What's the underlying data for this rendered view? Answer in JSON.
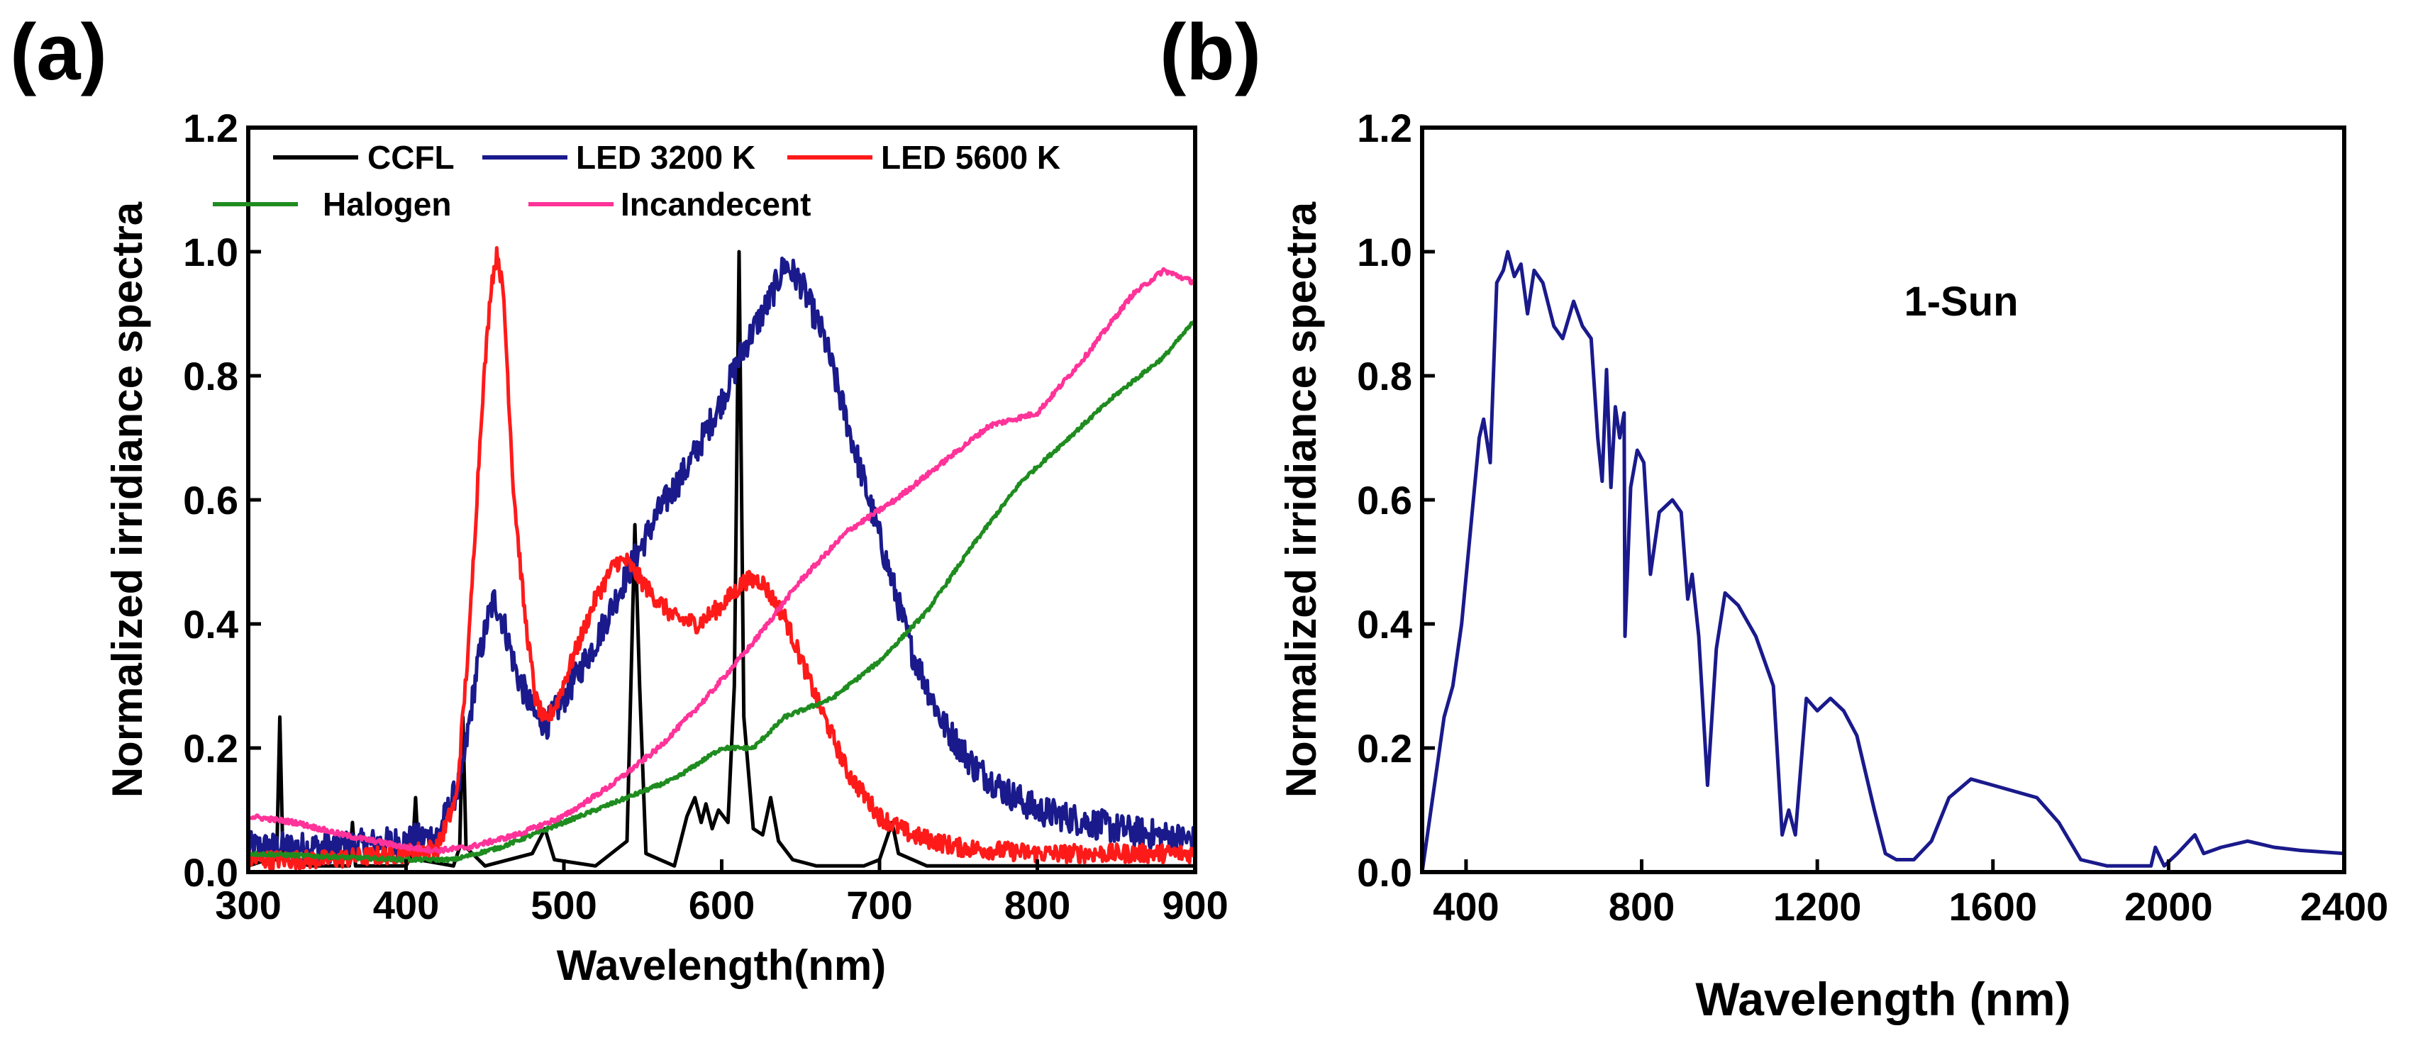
{
  "chart_data": [
    {
      "panel": "(a)",
      "type": "line",
      "xlabel": "Wavelength(nm)",
      "ylabel": "Normalized irridiance spectra",
      "xlim": [
        300,
        900
      ],
      "ylim": [
        0,
        1.2
      ],
      "xticks": [
        300,
        400,
        500,
        600,
        700,
        800,
        900
      ],
      "yticks": [
        0.0,
        0.2,
        0.4,
        0.6,
        0.8,
        1.0,
        1.2
      ],
      "xtick_labels": [
        "300",
        "400",
        "500",
        "600",
        "700",
        "800",
        "900"
      ],
      "ytick_labels": [
        "0.0",
        "0.2",
        "0.4",
        "0.6",
        "0.8",
        "1.0",
        "1.2"
      ],
      "legend_position": "top",
      "series": [
        {
          "name": "CCFL",
          "color": "#000000",
          "points": [
            [
              300,
              0.01
            ],
            [
              312,
              0.02
            ],
            [
              318,
              0.02
            ],
            [
              320,
              0.25
            ],
            [
              322,
              0.02
            ],
            [
              340,
              0.01
            ],
            [
              364,
              0.01
            ],
            [
              366,
              0.08
            ],
            [
              368,
              0.01
            ],
            [
              400,
              0.01
            ],
            [
              404,
              0.03
            ],
            [
              406,
              0.12
            ],
            [
              408,
              0.02
            ],
            [
              430,
              0.01
            ],
            [
              434,
              0.04
            ],
            [
              436,
              0.25
            ],
            [
              438,
              0.04
            ],
            [
              450,
              0.01
            ],
            [
              480,
              0.03
            ],
            [
              488,
              0.07
            ],
            [
              494,
              0.02
            ],
            [
              520,
              0.01
            ],
            [
              540,
              0.05
            ],
            [
              545,
              0.56
            ],
            [
              548,
              0.3
            ],
            [
              552,
              0.03
            ],
            [
              570,
              0.01
            ],
            [
              578,
              0.09
            ],
            [
              583,
              0.12
            ],
            [
              587,
              0.08
            ],
            [
              590,
              0.11
            ],
            [
              594,
              0.07
            ],
            [
              598,
              0.1
            ],
            [
              604,
              0.08
            ],
            [
              608,
              0.3
            ],
            [
              611,
              1.0
            ],
            [
              614,
              0.25
            ],
            [
              620,
              0.07
            ],
            [
              626,
              0.06
            ],
            [
              631,
              0.12
            ],
            [
              636,
              0.05
            ],
            [
              645,
              0.02
            ],
            [
              660,
              0.01
            ],
            [
              690,
              0.01
            ],
            [
              700,
              0.02
            ],
            [
              708,
              0.08
            ],
            [
              712,
              0.03
            ],
            [
              730,
              0.01
            ],
            [
              900,
              0.01
            ]
          ]
        },
        {
          "name": "LED 3200 K",
          "color": "#1a1a8c",
          "noise": 0.025,
          "points": [
            [
              300,
              0.04
            ],
            [
              350,
              0.04
            ],
            [
              400,
              0.05
            ],
            [
              420,
              0.06
            ],
            [
              435,
              0.15
            ],
            [
              445,
              0.33
            ],
            [
              452,
              0.41
            ],
            [
              456,
              0.44
            ],
            [
              462,
              0.4
            ],
            [
              470,
              0.32
            ],
            [
              482,
              0.25
            ],
            [
              490,
              0.24
            ],
            [
              500,
              0.28
            ],
            [
              520,
              0.37
            ],
            [
              540,
              0.48
            ],
            [
              560,
              0.58
            ],
            [
              580,
              0.66
            ],
            [
              600,
              0.76
            ],
            [
              615,
              0.85
            ],
            [
              630,
              0.92
            ],
            [
              640,
              0.98
            ],
            [
              650,
              0.95
            ],
            [
              665,
              0.86
            ],
            [
              680,
              0.72
            ],
            [
              700,
              0.54
            ],
            [
              720,
              0.36
            ],
            [
              740,
              0.24
            ],
            [
              760,
              0.17
            ],
            [
              780,
              0.13
            ],
            [
              800,
              0.1
            ],
            [
              850,
              0.07
            ],
            [
              900,
              0.05
            ]
          ]
        },
        {
          "name": "LED 5600 K",
          "color": "#ff1a1a",
          "noise": 0.015,
          "points": [
            [
              300,
              0.02
            ],
            [
              350,
              0.02
            ],
            [
              400,
              0.03
            ],
            [
              420,
              0.04
            ],
            [
              432,
              0.12
            ],
            [
              440,
              0.38
            ],
            [
              448,
              0.75
            ],
            [
              454,
              0.95
            ],
            [
              458,
              1.0
            ],
            [
              462,
              0.92
            ],
            [
              468,
              0.62
            ],
            [
              475,
              0.42
            ],
            [
              482,
              0.28
            ],
            [
              488,
              0.24
            ],
            [
              495,
              0.27
            ],
            [
              505,
              0.34
            ],
            [
              520,
              0.44
            ],
            [
              533,
              0.5
            ],
            [
              540,
              0.5
            ],
            [
              555,
              0.45
            ],
            [
              570,
              0.41
            ],
            [
              585,
              0.4
            ],
            [
              600,
              0.43
            ],
            [
              615,
              0.47
            ],
            [
              625,
              0.47
            ],
            [
              640,
              0.41
            ],
            [
              660,
              0.28
            ],
            [
              680,
              0.16
            ],
            [
              700,
              0.09
            ],
            [
              720,
              0.06
            ],
            [
              750,
              0.04
            ],
            [
              800,
              0.03
            ],
            [
              900,
              0.03
            ]
          ]
        },
        {
          "name": "Halogen",
          "color": "#1f8c1f",
          "noise": 0.003,
          "points": [
            [
              300,
              0.03
            ],
            [
              350,
              0.025
            ],
            [
              400,
              0.02
            ],
            [
              430,
              0.02
            ],
            [
              460,
              0.04
            ],
            [
              500,
              0.08
            ],
            [
              540,
              0.12
            ],
            [
              570,
              0.15
            ],
            [
              600,
              0.2
            ],
            [
              620,
              0.2
            ],
            [
              640,
              0.25
            ],
            [
              670,
              0.28
            ],
            [
              700,
              0.34
            ],
            [
              730,
              0.42
            ],
            [
              760,
              0.53
            ],
            [
              790,
              0.63
            ],
            [
              820,
              0.7
            ],
            [
              850,
              0.77
            ],
            [
              880,
              0.83
            ],
            [
              900,
              0.89
            ]
          ]
        },
        {
          "name": "Incandecent",
          "color": "#ff3399",
          "noise": 0.004,
          "points": [
            [
              300,
              0.09
            ],
            [
              330,
              0.08
            ],
            [
              360,
              0.06
            ],
            [
              400,
              0.04
            ],
            [
              420,
              0.035
            ],
            [
              440,
              0.04
            ],
            [
              470,
              0.06
            ],
            [
              500,
              0.09
            ],
            [
              530,
              0.14
            ],
            [
              560,
              0.2
            ],
            [
              590,
              0.28
            ],
            [
              620,
              0.37
            ],
            [
              650,
              0.47
            ],
            [
              680,
              0.55
            ],
            [
              710,
              0.6
            ],
            [
              740,
              0.66
            ],
            [
              770,
              0.72
            ],
            [
              800,
              0.74
            ],
            [
              830,
              0.83
            ],
            [
              860,
              0.93
            ],
            [
              880,
              0.97
            ],
            [
              900,
              0.95
            ]
          ]
        }
      ]
    },
    {
      "panel": "(b)",
      "type": "line",
      "xlabel": "Wavelength (nm)",
      "ylabel": "Normalized irridiance spectra",
      "xlim": [
        300,
        2400
      ],
      "ylim": [
        0,
        1.2
      ],
      "xticks": [
        400,
        800,
        1200,
        1600,
        2000,
        2400
      ],
      "yticks": [
        0.0,
        0.2,
        0.4,
        0.6,
        0.8,
        1.0,
        1.2
      ],
      "xtick_labels": [
        "400",
        "800",
        "1200",
        "1600",
        "2000",
        "2400"
      ],
      "ytick_labels": [
        "0.0",
        "0.2",
        "0.4",
        "0.6",
        "0.8",
        "1.0",
        "1.2"
      ],
      "annotation": "1-Sun",
      "series": [
        {
          "name": "1-Sun",
          "color": "#1a1a8c",
          "points": [
            [
              300,
              0.0
            ],
            [
              310,
              0.05
            ],
            [
              330,
              0.15
            ],
            [
              350,
              0.25
            ],
            [
              370,
              0.3
            ],
            [
              390,
              0.4
            ],
            [
              410,
              0.55
            ],
            [
              430,
              0.7
            ],
            [
              440,
              0.73
            ],
            [
              455,
              0.66
            ],
            [
              470,
              0.95
            ],
            [
              485,
              0.97
            ],
            [
              495,
              1.0
            ],
            [
              510,
              0.96
            ],
            [
              525,
              0.98
            ],
            [
              540,
              0.9
            ],
            [
              555,
              0.97
            ],
            [
              575,
              0.95
            ],
            [
              600,
              0.88
            ],
            [
              620,
              0.86
            ],
            [
              645,
              0.92
            ],
            [
              665,
              0.88
            ],
            [
              685,
              0.86
            ],
            [
              700,
              0.7
            ],
            [
              710,
              0.63
            ],
            [
              720,
              0.81
            ],
            [
              730,
              0.62
            ],
            [
              740,
              0.75
            ],
            [
              750,
              0.7
            ],
            [
              760,
              0.74
            ],
            [
              762,
              0.38
            ],
            [
              775,
              0.62
            ],
            [
              790,
              0.68
            ],
            [
              805,
              0.66
            ],
            [
              820,
              0.48
            ],
            [
              840,
              0.58
            ],
            [
              870,
              0.6
            ],
            [
              890,
              0.58
            ],
            [
              905,
              0.44
            ],
            [
              915,
              0.48
            ],
            [
              930,
              0.38
            ],
            [
              950,
              0.14
            ],
            [
              970,
              0.36
            ],
            [
              990,
              0.45
            ],
            [
              1020,
              0.43
            ],
            [
              1060,
              0.38
            ],
            [
              1100,
              0.3
            ],
            [
              1120,
              0.06
            ],
            [
              1135,
              0.1
            ],
            [
              1150,
              0.06
            ],
            [
              1175,
              0.28
            ],
            [
              1200,
              0.26
            ],
            [
              1230,
              0.28
            ],
            [
              1260,
              0.26
            ],
            [
              1290,
              0.22
            ],
            [
              1330,
              0.1
            ],
            [
              1355,
              0.03
            ],
            [
              1380,
              0.02
            ],
            [
              1420,
              0.02
            ],
            [
              1460,
              0.05
            ],
            [
              1500,
              0.12
            ],
            [
              1550,
              0.15
            ],
            [
              1600,
              0.14
            ],
            [
              1700,
              0.12
            ],
            [
              1750,
              0.08
            ],
            [
              1800,
              0.02
            ],
            [
              1860,
              0.01
            ],
            [
              1920,
              0.01
            ],
            [
              1960,
              0.01
            ],
            [
              1970,
              0.04
            ],
            [
              1990,
              0.01
            ],
            [
              2020,
              0.03
            ],
            [
              2060,
              0.06
            ],
            [
              2080,
              0.03
            ],
            [
              2120,
              0.04
            ],
            [
              2180,
              0.05
            ],
            [
              2240,
              0.04
            ],
            [
              2300,
              0.035
            ],
            [
              2400,
              0.03
            ]
          ]
        }
      ]
    }
  ]
}
